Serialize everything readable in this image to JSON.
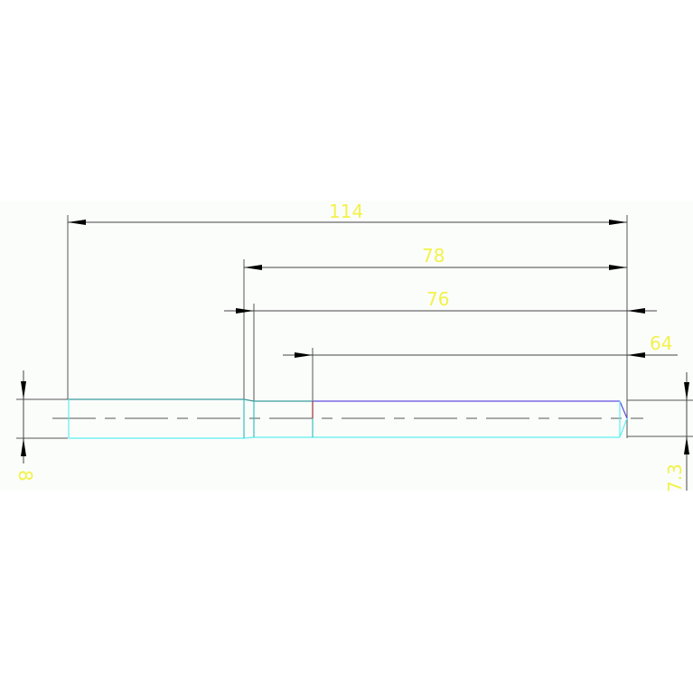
{
  "drawing": {
    "dimensions": {
      "overall_length": "114",
      "length_78": "78",
      "length_76": "76",
      "length_64": "64",
      "left_diameter": "8",
      "right_diameter": "7.3"
    },
    "colors": {
      "background": "#fbfdfb",
      "dimension_line": "#444444",
      "dimension_text": "#f2f24a",
      "outline_cyan": "#5ef0f0",
      "outline_teal": "#3a9a9a",
      "outline_blue": "#7a6ae8",
      "marker_red": "#a03030"
    }
  }
}
